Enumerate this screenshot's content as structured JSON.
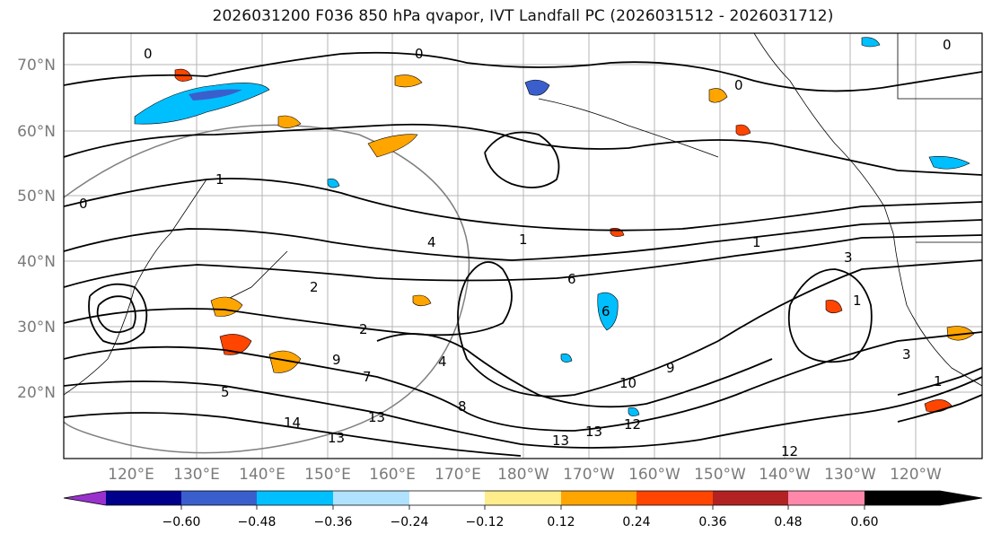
{
  "title": "2026031200 F036 850 hPa qvapor, IVT Landfall PC (2026031512 - 2026031712)",
  "lat_labels": [
    "70°N",
    "60°N",
    "50°N",
    "40°N",
    "30°N",
    "20°N"
  ],
  "lon_labels": [
    "120°E",
    "130°E",
    "140°E",
    "150°E",
    "160°E",
    "170°E",
    "180°W",
    "170°W",
    "160°W",
    "150°W",
    "140°W",
    "130°W",
    "120°W"
  ],
  "contour_labels": [
    "0",
    "0",
    "0",
    "0",
    "0",
    "1",
    "1",
    "1",
    "1",
    "1",
    "3",
    "3",
    "4",
    "6",
    "6",
    "2",
    "2",
    "9",
    "9",
    "10",
    "12",
    "12",
    "13",
    "13",
    "13",
    "13",
    "14",
    "8",
    "5",
    "4",
    "7"
  ],
  "colorbar": {
    "tick_labels": [
      "−0.60",
      "−0.48",
      "−0.36",
      "−0.24",
      "−0.12",
      "0.12",
      "0.24",
      "0.36",
      "0.48",
      "0.60"
    ],
    "colors": [
      "#9932cc",
      "#00008b",
      "#3a5fcd",
      "#00bfff",
      "#b0e2ff",
      "#ffffff",
      "#ffec8b",
      "#ffa500",
      "#ff4500",
      "#b22222",
      "#ff88aa"
    ]
  }
}
